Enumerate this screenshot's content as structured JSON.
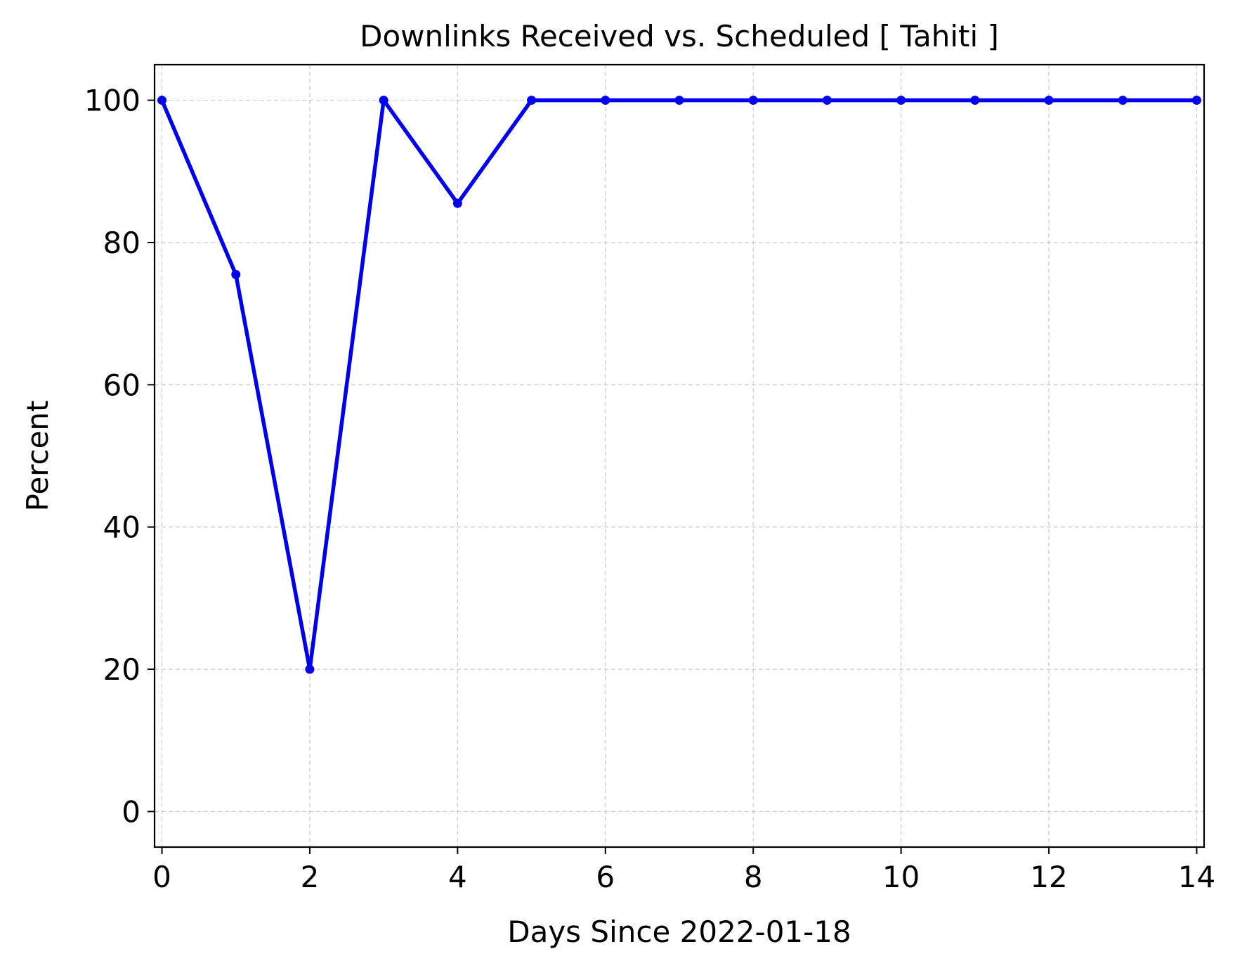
{
  "chart_data": {
    "type": "line",
    "title": "Downlinks Received vs. Scheduled [ Tahiti ]",
    "xlabel": "Days Since 2022-01-18",
    "ylabel": "Percent",
    "xlim": [
      -0.1,
      14.1
    ],
    "ylim": [
      -5,
      105
    ],
    "x_ticks": [
      0,
      2,
      4,
      6,
      8,
      10,
      12,
      14
    ],
    "y_ticks": [
      0,
      20,
      40,
      60,
      80,
      100
    ],
    "grid": true,
    "legend": "none",
    "series": [
      {
        "color": "#0000ee",
        "marker": "dot",
        "x": [
          0,
          1,
          2,
          3,
          4,
          5,
          6,
          7,
          8,
          9,
          10,
          11,
          12,
          13,
          14
        ],
        "y": [
          100,
          75.5,
          20,
          100,
          85.5,
          100,
          100,
          100,
          100,
          100,
          100,
          100,
          100,
          100,
          100
        ]
      }
    ]
  }
}
